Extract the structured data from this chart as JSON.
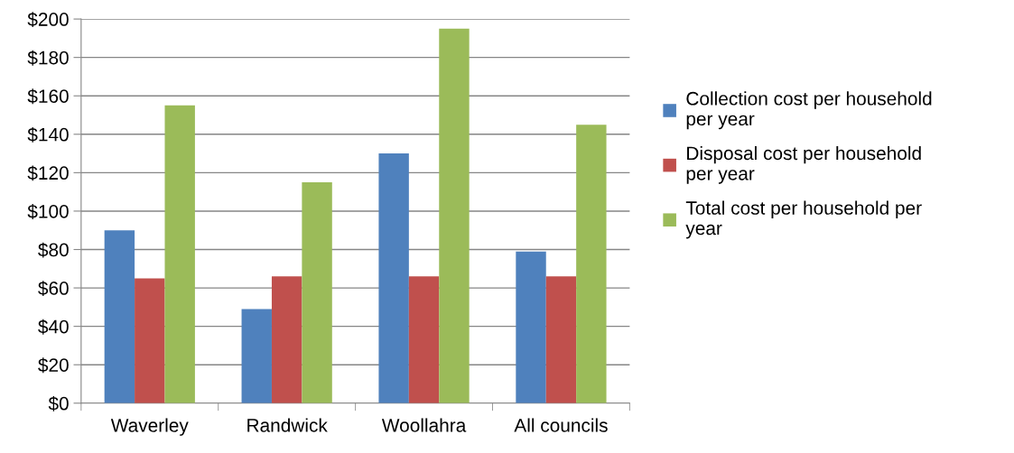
{
  "chart_data": {
    "type": "bar",
    "categories": [
      "Waverley",
      "Randwick",
      "Woollahra",
      "All councils"
    ],
    "series": [
      {
        "name": "Collection cost per household per year",
        "color": "#4f81bd",
        "values": [
          90,
          49,
          130,
          79
        ]
      },
      {
        "name": "Disposal cost per household per year",
        "color": "#c0504d",
        "values": [
          65,
          66,
          66,
          66
        ]
      },
      {
        "name": "Total cost per household per year",
        "color": "#9bbb59",
        "values": [
          155,
          115,
          195,
          145
        ]
      }
    ],
    "ylim": [
      0,
      200
    ],
    "yticks": [
      {
        "value": 0,
        "label": "$0"
      },
      {
        "value": 20,
        "label": "$20"
      },
      {
        "value": 40,
        "label": "$40"
      },
      {
        "value": 60,
        "label": "$60"
      },
      {
        "value": 80,
        "label": "$80"
      },
      {
        "value": 100,
        "label": "$100"
      },
      {
        "value": 120,
        "label": "$120"
      },
      {
        "value": 140,
        "label": "$140"
      },
      {
        "value": 160,
        "label": "$160"
      },
      {
        "value": 180,
        "label": "$180"
      },
      {
        "value": 200,
        "label": "$200"
      }
    ],
    "grid": "y",
    "legend": "right"
  }
}
